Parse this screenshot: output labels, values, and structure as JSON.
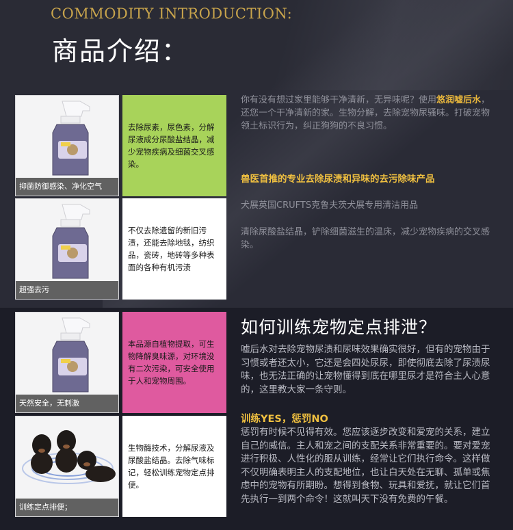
{
  "header": {
    "en_title": "COMMODITY INTRODUCTION:",
    "cn_title": "商品介绍："
  },
  "features": [
    {
      "caption": "抑菌防御感染、净化空气",
      "text": "去除尿素，尿色素，分解尿液成分尿酸盐结晶，减少宠物疾病及细菌交叉感染。",
      "color": "#a8d35a"
    },
    {
      "caption": "超强去污",
      "text": "不仅去除遗留的新旧污渍，还能去除地毯，纺织品，瓷砖，地砖等多种表面的各种有机污渍",
      "color": "#ffffff"
    },
    {
      "caption": "天然安全，无刺激",
      "text": "本品源自植物提取，可生物降解臭味源，对环境没有二次污染，可安全使用于人和宠物周围。",
      "color": "#df5a9f"
    },
    {
      "caption": "训练定点排便；",
      "text": "生物酶技术，分解尿液及尿酸盐结晶。去除气味标记，轻松训练宠物定点排便。",
      "color": "#ffffff"
    }
  ],
  "intro": {
    "p1_before": "你有没有想过家里能够干净清新，无异味呢？使用",
    "p1_highlight": "悠润嘘后水",
    "p1_after": "，还您一个干净清新的家。生物分解，去除宠物尿骚味。打破宠物领土标识行为，纠正狗狗的不良习惯。",
    "recommend": "兽医首推的专业去除尿渍和异味的去污除味产品",
    "p2": "犬展英国CRUFTS克鲁夫茨犬展专用清洁用品",
    "p3": "清除尿酸盐结晶，铲除细菌滋生的温床，减少宠物疾病的交叉感染。"
  },
  "training": {
    "title": "如何训练宠物定点排泄？",
    "p1": "嘘后水对去除宠物尿渍和尿味效果确实很好，但有的宠物由于习惯或者还太小，它还是会四处尿尿，即使彻底去除了尿渍尿味，也无法正确的让宠物懂得到底在哪里尿才是符合主人心意的，这里教大家一条守则。",
    "subtitle": "训练YES，惩罚NO",
    "p2": "惩罚有时候不见得有效。您应该逐步改变和爱宠的关系，建立自己的威信。主人和宠之间的支配关系非常重要的。要对爱宠进行积极、人性化的服从训练，经常让它们执行命令。这样做不仅明确表明主人的支配地位，也让白天处在无聊、孤单或焦虑中的宠物有所期盼。想得到食物、玩具和爱抚，就让它们首先执行一到两个命令！这就叫天下没有免费的午餐。"
  },
  "colors": {
    "gold": "#c8a44c",
    "green": "#a8d35a",
    "pink": "#df5a9f"
  }
}
